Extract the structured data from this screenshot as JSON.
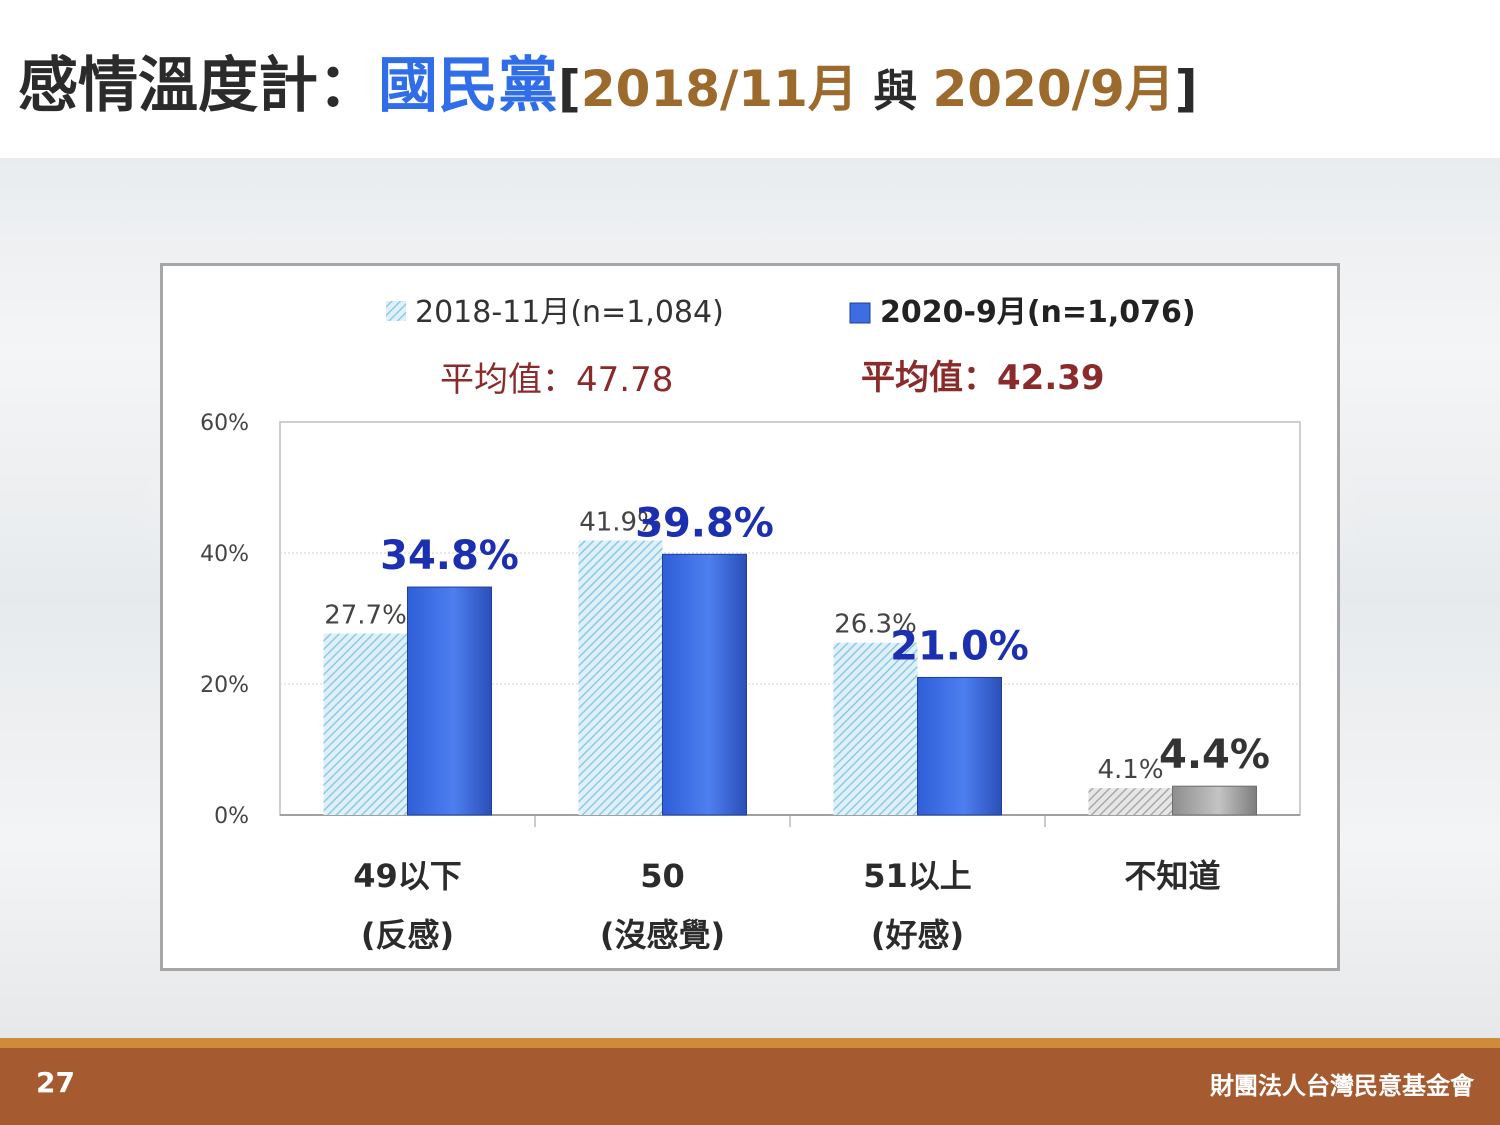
{
  "slide": {
    "title_main": "感情溫度計：",
    "title_party": "國民黨",
    "title_open": "[",
    "title_date1": "2018/11月",
    "title_conj": " 與 ",
    "title_date2": "2020/9月",
    "title_close": "]",
    "page_number": "27",
    "organization": "財團法人台灣民意基金會"
  },
  "colors": {
    "series_2018": "#a8d4ea",
    "series_2020": "#3d6de2",
    "dont_know_2018": "#b5b5b5",
    "dont_know_2020": "#9e9e9e",
    "average_text": "#8b2a2a",
    "label_2020": "#1b2fb0"
  },
  "chart_data": {
    "type": "bar",
    "categories": [
      "49以下",
      "50",
      "51以上",
      "不知道"
    ],
    "category_sublabels": [
      "(反感)",
      "(沒感覺)",
      "(好感)",
      ""
    ],
    "series": [
      {
        "name": "2018-11月(n=1,084)",
        "values": [
          27.7,
          41.9,
          26.3,
          4.1
        ],
        "labels": [
          "27.7%",
          "41.9%",
          "26.3%",
          "4.1%"
        ],
        "average_label": "平均值：47.78"
      },
      {
        "name": "2020-9月(n=1,076)",
        "values": [
          34.8,
          39.8,
          21.0,
          4.4
        ],
        "labels": [
          "34.8%",
          "39.8%",
          "21.0%",
          "4.4%"
        ],
        "average_label": "平均值：42.39"
      }
    ],
    "yticks": [
      "0%",
      "20%",
      "40%",
      "60%"
    ],
    "ylim": [
      0,
      60
    ],
    "grid": true,
    "legend_position": "top"
  }
}
